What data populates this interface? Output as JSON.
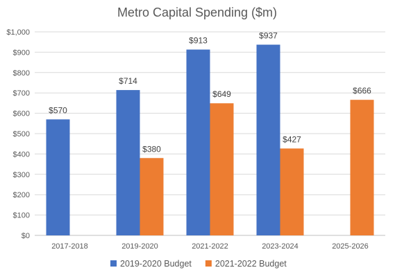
{
  "chart_data": {
    "type": "bar",
    "title": "Metro Capital Spending ($m)",
    "categories": [
      "2017-2018",
      "2019-2020",
      "2021-2022",
      "2023-2024",
      "2025-2026"
    ],
    "series": [
      {
        "name": "2019-2020 Budget",
        "color": "#4472C4",
        "values": [
          570,
          714,
          913,
          937,
          null
        ],
        "labels": [
          "$570",
          "$714",
          "$913",
          "$937",
          null
        ]
      },
      {
        "name": "2021-2022 Budget",
        "color": "#ED7D31",
        "values": [
          null,
          380,
          649,
          427,
          666
        ],
        "labels": [
          null,
          "$380",
          "$649",
          "$427",
          "$666"
        ]
      }
    ],
    "ylim": [
      0,
      1000
    ],
    "yticks": [
      "$0",
      "$100",
      "$200",
      "$300",
      "$400",
      "$500",
      "$600",
      "$700",
      "$800",
      "$900",
      "$1,000"
    ],
    "ytick_values": [
      0,
      100,
      200,
      300,
      400,
      500,
      600,
      700,
      800,
      900,
      1000
    ],
    "grid": true,
    "legend": "bottom"
  }
}
